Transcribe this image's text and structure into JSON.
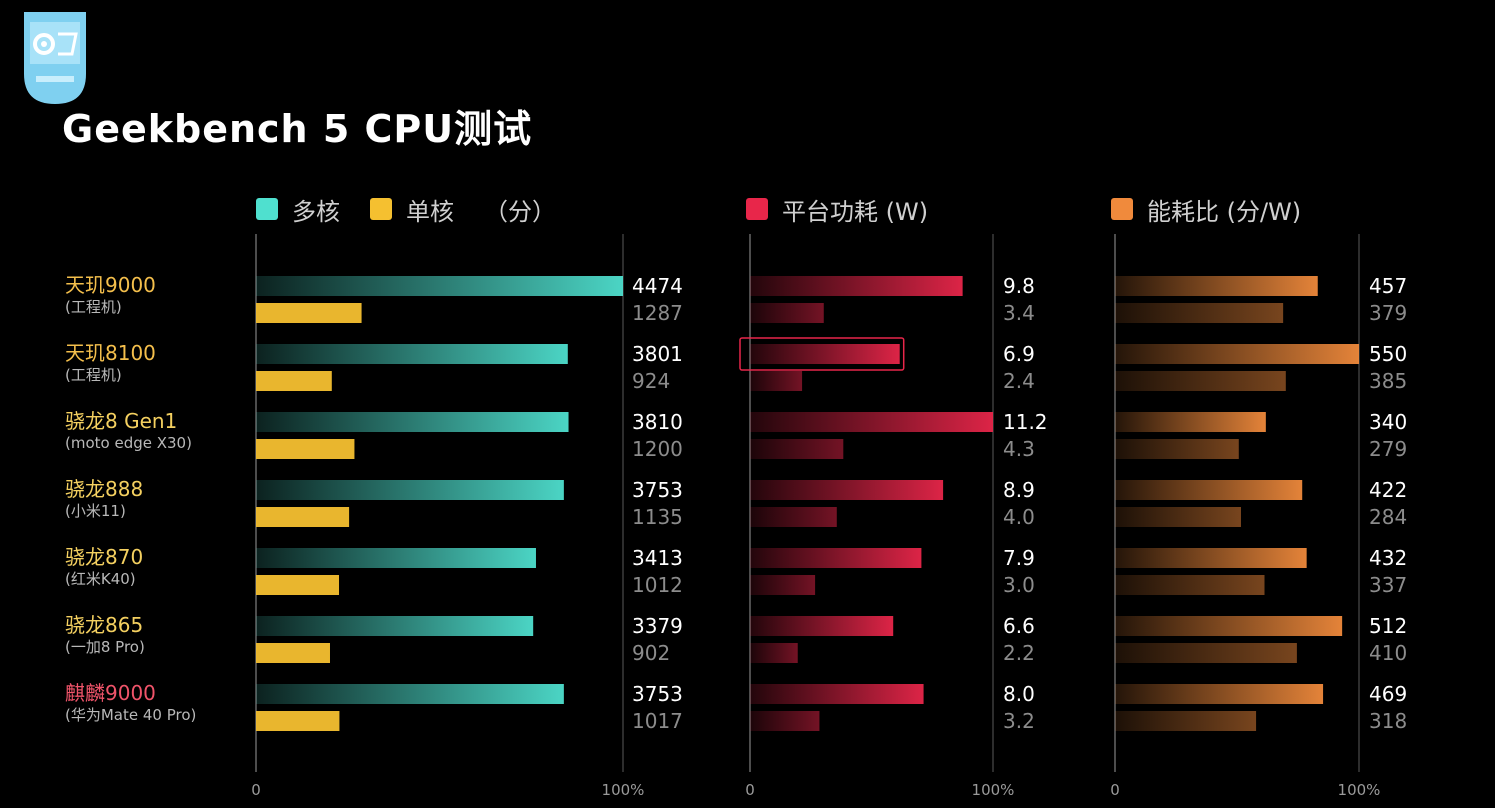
{
  "title": "Geekbench 5 CPU测试",
  "legend": {
    "multi": "多核",
    "single": "单核",
    "score_unit": "（分）",
    "power": "平台功耗 (W)",
    "efficiency": "能耗比 (分/W)"
  },
  "colors": {
    "multi": "#4fe0cf",
    "single": "#f5c030",
    "power": "#e8264a",
    "efficiency": "#f08a3c",
    "label_gold": "#f4bf4c",
    "label_red": "#f0546a"
  },
  "phones": [
    {
      "name": "天玑9000",
      "sub": "(工程机)",
      "color": "#f4bf4c"
    },
    {
      "name": "天玑8100",
      "sub": "(工程机)",
      "color": "#f4bf4c"
    },
    {
      "name": "骁龙8 Gen1",
      "sub": "(moto edge X30)",
      "color": "#f4d060"
    },
    {
      "name": "骁龙888",
      "sub": "(小米11)",
      "color": "#f4d060"
    },
    {
      "name": "骁龙870",
      "sub": "(红米K40)",
      "color": "#f4d060"
    },
    {
      "name": "骁龙865",
      "sub": "(一加8 Pro)",
      "color": "#f4d060"
    },
    {
      "name": "麒麟9000",
      "sub": "(华为Mate 40 Pro)",
      "color": "#f0546a"
    }
  ],
  "chart_data": [
    {
      "type": "bar",
      "title": "",
      "series": [
        {
          "name": "多核",
          "values": [
            4474,
            3801,
            3810,
            3753,
            3413,
            3379,
            3753
          ],
          "labels": [
            "4474",
            "3801",
            "3810",
            "3753",
            "3413",
            "3379",
            "3753"
          ]
        },
        {
          "name": "单核",
          "values": [
            1287,
            924,
            1200,
            1135,
            1012,
            902,
            1017
          ],
          "labels": [
            "1287",
            "924",
            "1200",
            "1135",
            "1012",
            "902",
            "1017"
          ]
        }
      ],
      "xlim": [
        0,
        4474
      ],
      "axis_ticks": [
        "0",
        "100%"
      ]
    },
    {
      "type": "bar",
      "title": "",
      "series": [
        {
          "name": "平台功耗 (W)",
          "values": [
            9.8,
            6.9,
            11.2,
            8.9,
            7.9,
            6.6,
            8.0
          ],
          "labels": [
            "9.8",
            "6.9",
            "11.2",
            "8.9",
            "7.9",
            "6.6",
            "8.0"
          ]
        },
        {
          "name": "",
          "values": [
            3.4,
            2.4,
            4.3,
            4.0,
            3.0,
            2.2,
            3.2
          ],
          "labels": [
            "3.4",
            "2.4",
            "4.3",
            "4.0",
            "3.0",
            "2.2",
            "3.2"
          ]
        }
      ],
      "xlim": [
        0,
        11.2
      ],
      "axis_ticks": [
        "0",
        "100%"
      ],
      "highlight": {
        "series": 0,
        "row": 1
      }
    },
    {
      "type": "bar",
      "title": "",
      "series": [
        {
          "name": "能耗比 (分/W)",
          "values": [
            457,
            550,
            340,
            422,
            432,
            512,
            469
          ],
          "labels": [
            "457",
            "550",
            "340",
            "422",
            "432",
            "512",
            "469"
          ]
        },
        {
          "name": "",
          "values": [
            379,
            385,
            279,
            284,
            337,
            410,
            318
          ],
          "labels": [
            "379",
            "385",
            "279",
            "284",
            "337",
            "410",
            "318"
          ]
        }
      ],
      "xlim": [
        0,
        550
      ],
      "axis_ticks": [
        "0",
        "100%"
      ]
    }
  ]
}
